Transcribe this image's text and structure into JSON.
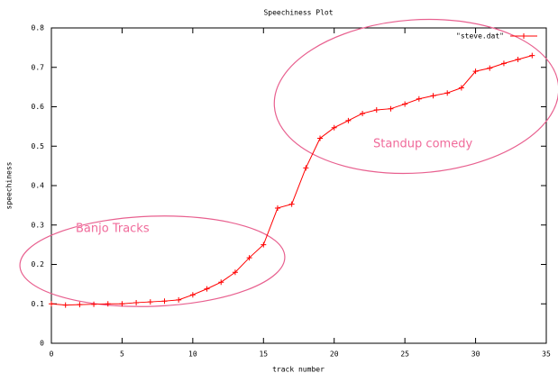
{
  "chart_data": {
    "type": "line",
    "title": "Speechiness Plot",
    "x_label": "track number",
    "y_label": "speechiness",
    "x": [
      0,
      1,
      2,
      3,
      4,
      5,
      6,
      7,
      8,
      9,
      10,
      11,
      12,
      13,
      14,
      15,
      16,
      17,
      18,
      19,
      20,
      21,
      22,
      23,
      24,
      25,
      26,
      27,
      28,
      29,
      30,
      31,
      32,
      33,
      34
    ],
    "series": [
      {
        "name": "\"steve.dat\"",
        "color": "#ff0000",
        "values": [
          0.1,
          0.097,
          0.098,
          0.099,
          0.1,
          0.1,
          0.103,
          0.105,
          0.107,
          0.11,
          0.123,
          0.138,
          0.155,
          0.18,
          0.217,
          0.25,
          0.343,
          0.353,
          0.445,
          0.52,
          0.547,
          0.565,
          0.583,
          0.592,
          0.595,
          0.607,
          0.62,
          0.628,
          0.635,
          0.648,
          0.69,
          0.698,
          0.71,
          0.72,
          0.73
        ]
      }
    ],
    "xlim": [
      0,
      35
    ],
    "xticks": [
      0,
      5,
      10,
      15,
      20,
      25,
      30,
      35
    ],
    "ylim": [
      0,
      0.8
    ],
    "yticks": [
      0,
      0.1,
      0.2,
      0.3,
      0.4,
      0.5,
      0.6,
      0.7,
      0.8
    ],
    "grid": false,
    "legend": "top-right",
    "annotations": [
      "Banjo Tracks",
      "Standup comedy"
    ]
  }
}
